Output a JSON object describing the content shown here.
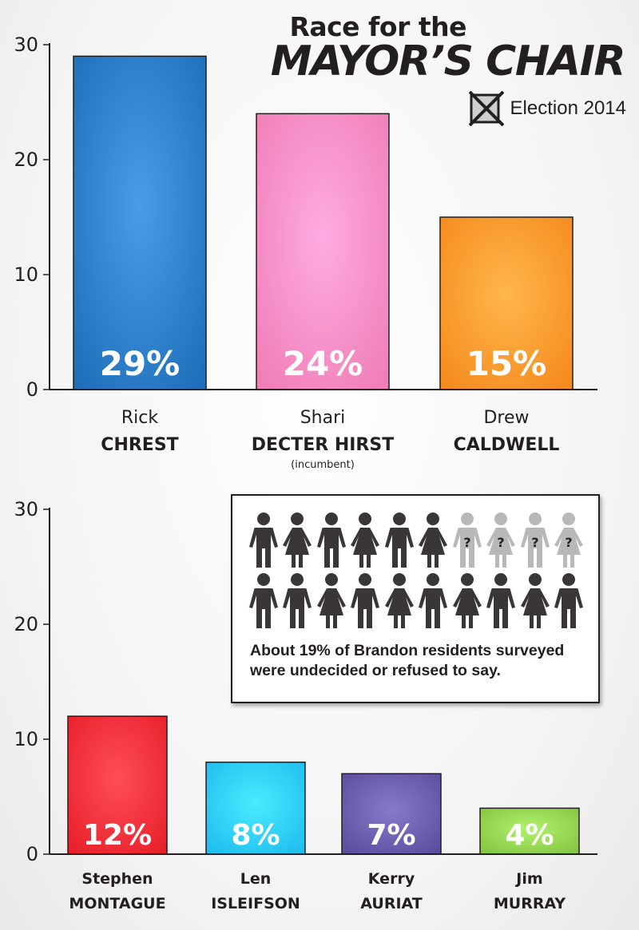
{
  "header": {
    "title_line1": "Race for the",
    "title_line2": "MAYOR’S CHAIR",
    "election_label": "Election 2014"
  },
  "undecided": {
    "text_line1": "About 19% of Brandon residents surveyed",
    "text_line2": "were undecided or refused to say.",
    "figures": [
      {
        "kind": "male",
        "status": "decided"
      },
      {
        "kind": "female",
        "status": "decided"
      },
      {
        "kind": "male",
        "status": "decided"
      },
      {
        "kind": "female",
        "status": "decided"
      },
      {
        "kind": "male",
        "status": "decided"
      },
      {
        "kind": "female",
        "status": "decided"
      },
      {
        "kind": "male",
        "status": "undecided"
      },
      {
        "kind": "female",
        "status": "undecided"
      },
      {
        "kind": "male",
        "status": "undecided"
      },
      {
        "kind": "female",
        "status": "undecided"
      },
      {
        "kind": "male",
        "status": "decided"
      },
      {
        "kind": "male",
        "status": "decided"
      },
      {
        "kind": "female",
        "status": "decided"
      },
      {
        "kind": "male",
        "status": "decided"
      },
      {
        "kind": "female",
        "status": "decided"
      },
      {
        "kind": "male",
        "status": "decided"
      },
      {
        "kind": "female",
        "status": "decided"
      },
      {
        "kind": "male",
        "status": "decided"
      },
      {
        "kind": "female",
        "status": "decided"
      },
      {
        "kind": "male",
        "status": "decided"
      }
    ],
    "colors": {
      "decided": "#3a3536",
      "undecided": "#b8b8b8"
    },
    "question_mark": "?"
  },
  "chart_data": [
    {
      "type": "bar",
      "title": "Race for the MAYOR’S CHAIR",
      "ylim": [
        0,
        30
      ],
      "yticks": [
        0,
        10,
        20,
        30
      ],
      "categories": [
        "Rick CHREST",
        "Shari DECTER HIRST",
        "Drew CALDWELL"
      ],
      "first_names": [
        "Rick",
        "Shari",
        "Drew"
      ],
      "last_names": [
        "CHREST",
        "DECTER HIRST",
        "CALDWELL"
      ],
      "notes": [
        "",
        "(incumbent)",
        ""
      ],
      "values": [
        29,
        24,
        15
      ],
      "value_labels": [
        "29%",
        "24%",
        "15%"
      ],
      "colors": [
        "#1d6fba",
        "#f07eb6",
        "#f58a1e"
      ]
    },
    {
      "type": "bar",
      "ylim": [
        0,
        30
      ],
      "yticks": [
        0,
        10,
        20,
        30
      ],
      "categories": [
        "Stephen MONTAGUE",
        "Len ISLEIFSON",
        "Kerry AURIAT",
        "Jim MURRAY"
      ],
      "first_names": [
        "Stephen",
        "Len",
        "Kerry",
        "Jim"
      ],
      "last_names": [
        "MONTAGUE",
        "ISLEIFSON",
        "AURIAT",
        "MURRAY"
      ],
      "notes": [
        "",
        "",
        "",
        ""
      ],
      "values": [
        12,
        8,
        7,
        4
      ],
      "value_labels": [
        "12%",
        "8%",
        "7%",
        "4%"
      ],
      "colors": [
        "#e8202a",
        "#1ebdee",
        "#5b4c9e",
        "#84c441"
      ]
    }
  ]
}
